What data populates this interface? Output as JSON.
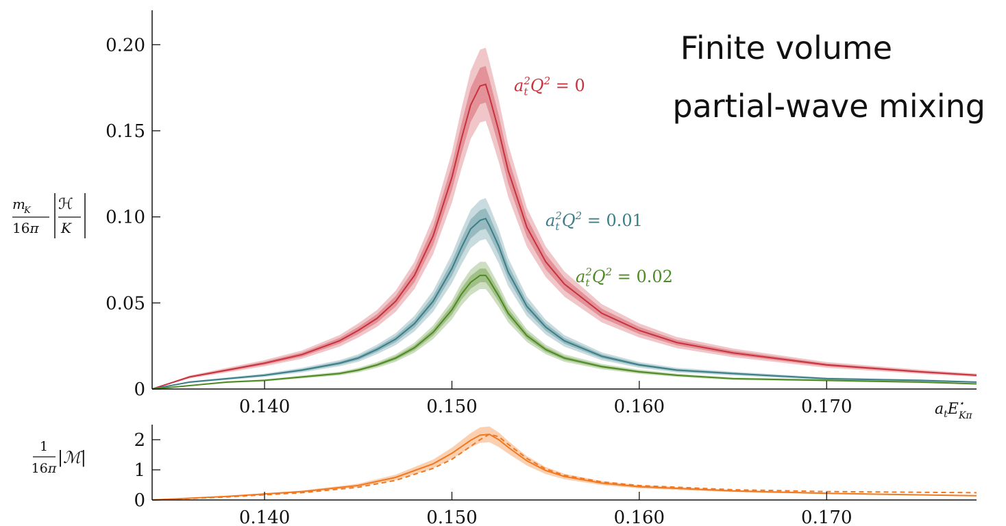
{
  "title": {
    "line1": "Finite volume",
    "line2": "partial-wave mixing"
  },
  "chart_data": [
    {
      "type": "line",
      "panel": "upper",
      "xlabel": "a_t E*_Kπ",
      "ylabel": "m_K/16π |H/K|",
      "xlim": [
        0.134,
        0.178
      ],
      "ylim": [
        0,
        0.22
      ],
      "xticks": [
        "0.140",
        "0.150",
        "0.160",
        "0.170"
      ],
      "yticks": [
        "0",
        "0.05",
        "0.10",
        "0.15",
        "0.20"
      ],
      "x": [
        0.134,
        0.136,
        0.138,
        0.14,
        0.142,
        0.144,
        0.145,
        0.146,
        0.147,
        0.148,
        0.149,
        0.15,
        0.1505,
        0.151,
        0.1515,
        0.1518,
        0.152,
        0.1525,
        0.153,
        0.154,
        0.155,
        0.156,
        0.158,
        0.16,
        0.162,
        0.165,
        0.17,
        0.175,
        0.178
      ],
      "series": [
        {
          "name": "a_t²Q² = 0",
          "color": "#c8323c",
          "values": [
            0.0,
            0.007,
            0.011,
            0.015,
            0.02,
            0.028,
            0.034,
            0.041,
            0.051,
            0.066,
            0.089,
            0.123,
            0.145,
            0.165,
            0.176,
            0.177,
            0.17,
            0.15,
            0.127,
            0.094,
            0.074,
            0.061,
            0.044,
            0.034,
            0.027,
            0.021,
            0.014,
            0.01,
            0.008
          ],
          "band_inner": 0.06,
          "band_outer": 0.12
        },
        {
          "name": "a_t²Q² = 0.01",
          "color": "#3a7e88",
          "values": [
            0.0,
            0.004,
            0.006,
            0.008,
            0.011,
            0.015,
            0.018,
            0.023,
            0.029,
            0.038,
            0.051,
            0.07,
            0.082,
            0.093,
            0.098,
            0.099,
            0.095,
            0.083,
            0.068,
            0.048,
            0.036,
            0.028,
            0.019,
            0.014,
            0.011,
            0.009,
            0.006,
            0.005,
            0.004
          ],
          "band_inner": 0.06,
          "band_outer": 0.12
        },
        {
          "name": "a_t²Q² = 0.02",
          "color": "#4e8a22",
          "values": [
            0.0,
            0.002,
            0.004,
            0.005,
            0.007,
            0.009,
            0.011,
            0.014,
            0.018,
            0.024,
            0.033,
            0.046,
            0.055,
            0.062,
            0.066,
            0.066,
            0.063,
            0.054,
            0.044,
            0.031,
            0.023,
            0.018,
            0.013,
            0.01,
            0.008,
            0.006,
            0.005,
            0.004,
            0.003
          ],
          "band_inner": 0.06,
          "band_outer": 0.12
        }
      ]
    },
    {
      "type": "line",
      "panel": "lower",
      "ylabel": "1/16π |M|",
      "xlim": [
        0.134,
        0.178
      ],
      "ylim": [
        0,
        2.5
      ],
      "xticks": [
        "0.140",
        "0.150",
        "0.160",
        "0.170"
      ],
      "yticks": [
        "0",
        "1",
        "2"
      ],
      "x": [
        0.134,
        0.138,
        0.142,
        0.145,
        0.147,
        0.149,
        0.15,
        0.151,
        0.1515,
        0.152,
        0.1525,
        0.153,
        0.154,
        0.155,
        0.156,
        0.158,
        0.16,
        0.165,
        0.17,
        0.178
      ],
      "series": [
        {
          "name": "solid",
          "color": "#f07820",
          "dash": false,
          "values": [
            0.0,
            0.12,
            0.28,
            0.48,
            0.75,
            1.2,
            1.55,
            1.98,
            2.15,
            2.18,
            2.0,
            1.75,
            1.3,
            0.98,
            0.78,
            0.56,
            0.44,
            0.3,
            0.22,
            0.14
          ]
        },
        {
          "name": "dashed",
          "color": "#f07820",
          "dash": true,
          "values": [
            0.0,
            0.1,
            0.24,
            0.42,
            0.65,
            1.05,
            1.35,
            1.78,
            2.0,
            2.18,
            2.1,
            1.85,
            1.38,
            1.03,
            0.82,
            0.6,
            0.48,
            0.34,
            0.28,
            0.24
          ]
        }
      ]
    }
  ]
}
